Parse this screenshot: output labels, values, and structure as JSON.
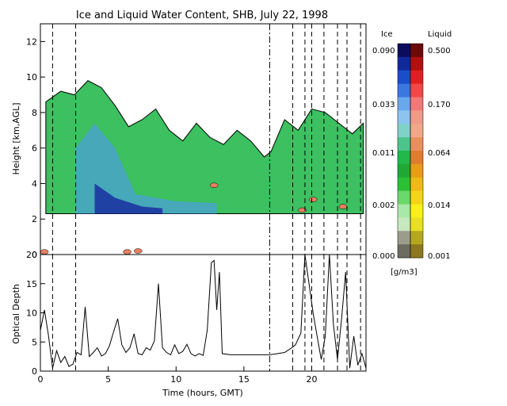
{
  "chart_data": [
    {
      "type": "heatmap",
      "title": "Ice and Liquid Water Content, SHB, July 22, 1998",
      "ylabel": "Height [km,AGL]",
      "xlim": [
        0,
        24
      ],
      "ylim": [
        0,
        13
      ],
      "xticks": [
        0,
        5,
        10,
        15,
        20
      ],
      "yticks": [
        0,
        2,
        4,
        6,
        8,
        10,
        12
      ],
      "grid": false,
      "cloud_base_km": 2.3,
      "dashed_vlines": [
        0.9,
        2.6,
        18.6,
        19.5,
        20.0,
        20.9,
        21.9,
        22.6,
        23.6
      ],
      "dashdot_vlines": [
        16.9
      ],
      "ice_layer_top_km": [
        [
          0.4,
          8.6
        ],
        [
          1.5,
          9.2
        ],
        [
          2.5,
          9.0
        ],
        [
          3.5,
          9.8
        ],
        [
          4.5,
          9.4
        ],
        [
          5.5,
          8.4
        ],
        [
          6.5,
          7.2
        ],
        [
          7.5,
          7.6
        ],
        [
          8.5,
          8.2
        ],
        [
          9.5,
          7.0
        ],
        [
          10.5,
          6.4
        ],
        [
          11.5,
          7.4
        ],
        [
          12.5,
          6.6
        ],
        [
          13.5,
          6.2
        ],
        [
          14.5,
          7.0
        ],
        [
          15.5,
          6.4
        ],
        [
          16.5,
          5.5
        ],
        [
          17.0,
          5.8
        ],
        [
          18.0,
          7.6
        ],
        [
          19.0,
          7.0
        ],
        [
          20.0,
          8.2
        ],
        [
          21.0,
          8.0
        ],
        [
          22.0,
          7.4
        ],
        [
          23.0,
          6.8
        ],
        [
          23.8,
          7.4
        ]
      ],
      "liquid_patches_km": [
        {
          "x": 12.8,
          "z": 3.9
        },
        {
          "x": 19.3,
          "z": 2.5
        },
        {
          "x": 20.1,
          "z": 3.1
        },
        {
          "x": 22.3,
          "z": 2.7
        },
        {
          "x": 0.3,
          "z": 0.15
        },
        {
          "x": 6.4,
          "z": 0.15
        },
        {
          "x": 7.2,
          "z": 0.2
        }
      ]
    },
    {
      "type": "line",
      "xlabel": "Time (hours, GMT)",
      "ylabel": "Optical Depth",
      "xlim": [
        0,
        24
      ],
      "ylim": [
        0,
        20
      ],
      "xticks": [
        0,
        5,
        10,
        15,
        20
      ],
      "yticks": [
        0,
        5,
        10,
        15,
        20
      ],
      "series": [
        {
          "x": [
            0.0,
            0.3,
            0.6,
            0.9,
            1.2,
            1.5,
            1.8,
            2.1,
            2.4,
            2.7,
            3.0,
            3.3,
            3.6,
            3.9,
            4.2,
            4.5,
            4.8,
            5.1,
            5.4,
            5.7,
            6.0,
            6.3,
            6.6,
            6.9,
            7.2,
            7.5,
            7.8,
            8.1,
            8.4,
            8.7,
            9.0,
            9.3,
            9.6,
            9.9,
            10.2,
            10.5,
            10.8,
            11.1,
            11.4,
            11.7,
            12.0,
            12.3,
            12.6,
            12.8,
            13.0,
            13.2,
            13.4,
            14.0,
            15.0,
            16.0,
            16.9,
            17.5,
            18.0,
            18.4,
            18.8,
            19.2,
            19.5,
            19.8,
            20.1,
            20.4,
            20.7,
            21.0,
            21.3,
            21.6,
            21.9,
            22.2,
            22.5,
            22.8,
            23.1,
            23.4,
            23.7,
            24.0
          ],
          "y": [
            7.0,
            10.5,
            6.0,
            0.5,
            3.5,
            1.5,
            2.5,
            0.8,
            1.2,
            3.2,
            2.8,
            11.0,
            2.5,
            3.2,
            4.0,
            2.6,
            3.0,
            4.4,
            6.8,
            9.0,
            4.5,
            3.2,
            4.0,
            6.4,
            3.0,
            2.8,
            4.0,
            3.6,
            5.2,
            15.0,
            4.0,
            3.2,
            2.8,
            4.5,
            3.0,
            3.4,
            4.6,
            3.0,
            2.6,
            3.0,
            2.7,
            7.0,
            18.6,
            19.0,
            10.5,
            17.0,
            3.0,
            2.8,
            2.8,
            2.8,
            2.8,
            3.0,
            3.2,
            3.8,
            4.5,
            6.5,
            20.0,
            15.0,
            10.0,
            6.0,
            2.0,
            6.0,
            20.0,
            8.0,
            2.0,
            9.0,
            17.0,
            0.5,
            6.0,
            1.0,
            3.0,
            0.5
          ]
        }
      ]
    }
  ],
  "colorbar": {
    "ice_label": "Ice",
    "liquid_label": "Liquid",
    "unit": "[g/m3]",
    "ice_ticks": [
      "0.090",
      "0.033",
      "0.011",
      "0.002",
      "0.000"
    ],
    "liquid_ticks": [
      "0.500",
      "0.170",
      "0.064",
      "0.014",
      "0.001"
    ],
    "ice_colors": [
      "#0c0c5e",
      "#102a9a",
      "#1a4ec8",
      "#3a78e0",
      "#6aa8ee",
      "#8cc4f0",
      "#7fd2c8",
      "#4cc48c",
      "#22b84a",
      "#20a834",
      "#2cc034",
      "#6ad86a",
      "#a8e8a8",
      "#c8e8c0",
      "#9c9c8c",
      "#6c6c60"
    ],
    "liquid_colors": [
      "#6a0a0a",
      "#b01010",
      "#e02020",
      "#f04848",
      "#f07878",
      "#f09a8a",
      "#f0a888",
      "#e8905c",
      "#e07c30",
      "#e89c18",
      "#f0b818",
      "#f4d418",
      "#f8f018",
      "#e8e020",
      "#b4a820",
      "#8c7820"
    ]
  }
}
